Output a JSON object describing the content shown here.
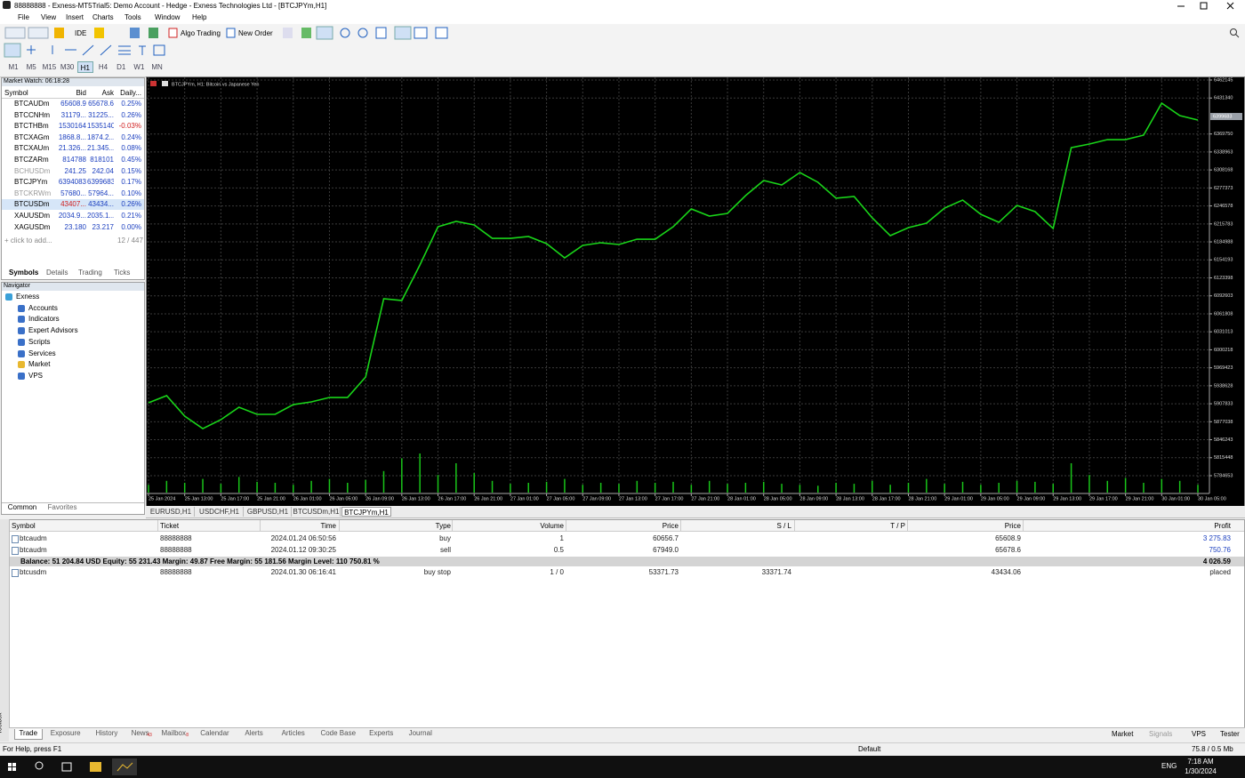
{
  "window_title": "88888888 - Exness-MT5Trial5: Demo Account - Hedge - Exness Technologies Ltd - [BTCJPYm,H1]",
  "menu": [
    "File",
    "View",
    "Insert",
    "Charts",
    "Tools",
    "Window",
    "Help"
  ],
  "toolbar": {
    "ide": "IDE",
    "algo_trading": "Algo Trading",
    "new_order": "New Order"
  },
  "timeframes": {
    "items": [
      "M1",
      "M5",
      "M15",
      "M30",
      "H1",
      "H4",
      "D1",
      "W1",
      "MN"
    ],
    "active": "H1"
  },
  "market_watch": {
    "title": "Market Watch: 06:18:28",
    "columns": [
      "Symbol",
      "Bid",
      "Ask",
      "Daily..."
    ],
    "rows": [
      [
        "BTCAUDm",
        "65608.9",
        "65678.6",
        "0.25%"
      ],
      [
        "BTCCNHm",
        "31179...",
        "31225...",
        "0.26%"
      ],
      [
        "BTCTHBm",
        "1530164",
        "1535140",
        "-0.03%"
      ],
      [
        "BTCXAGm",
        "1868.8...",
        "1874.2...",
        "0.24%"
      ],
      [
        "BTCXAUm",
        "21.326...",
        "21.345...",
        "0.08%"
      ],
      [
        "BTCZARm",
        "814788",
        "818101",
        "0.45%"
      ],
      [
        "BCHUSDm",
        "241.25",
        "242.04",
        "0.15%"
      ],
      [
        "BTCJPYm",
        "6394083",
        "6399683",
        "0.17%"
      ],
      [
        "BTCKRWm",
        "57680...",
        "57964...",
        "0.10%"
      ],
      [
        "BTCUSDm",
        "43407...",
        "43434...",
        "0.26%"
      ],
      [
        "XAUUSDm",
        "2034.9...",
        "2035.1...",
        "0.21%"
      ],
      [
        "XAGUSDm",
        "23.180",
        "23.217",
        "0.00%"
      ]
    ],
    "add_row": "+ click to add...",
    "count": "12 / 447",
    "tabs": [
      "Symbols",
      "Details",
      "Trading",
      "Ticks"
    ]
  },
  "navigator": {
    "title": "Navigator",
    "items": [
      "Exness",
      "Accounts",
      "Indicators",
      "Expert Advisors",
      "Scripts",
      "Services",
      "Market",
      "VPS"
    ],
    "tabs": [
      "Common",
      "Favorites"
    ]
  },
  "chart_data": {
    "type": "line",
    "title": "BTCJPYm, H1: Bitcoin vs Japanese Yen",
    "categories": [
      "25 Jan 2024",
      null,
      "25 Jan 13:00",
      null,
      "25 Jan 17:00",
      null,
      "25 Jan 21:00",
      null,
      "26 Jan 01:00",
      null,
      "26 Jan 05:00",
      null,
      "26 Jan 09:00",
      null,
      "26 Jan 13:00",
      null,
      "26 Jan 17:00",
      null,
      "26 Jan 21:00",
      null,
      "27 Jan 01:00",
      null,
      "27 Jan 05:00",
      null,
      "27 Jan 09:00",
      null,
      "27 Jan 13:00",
      null,
      "27 Jan 17:00",
      null,
      "27 Jan 21:00",
      null,
      "28 Jan 01:00",
      null,
      "28 Jan 05:00",
      null,
      "28 Jan 09:00",
      null,
      "28 Jan 13:00",
      null,
      "28 Jan 17:00",
      null,
      "28 Jan 21:00",
      null,
      "29 Jan 01:00",
      null,
      "29 Jan 05:00",
      null,
      "29 Jan 09:00",
      null,
      "29 Jan 13:00",
      null,
      "29 Jan 17:00",
      null,
      "29 Jan 21:00",
      null,
      "30 Jan 01:00",
      null,
      "30 Jan 05:00"
    ],
    "values": [
      5909500,
      5921700,
      5886600,
      5865300,
      5880600,
      5901900,
      5889700,
      5889700,
      5906400,
      5911000,
      5918600,
      5918600,
      5953600,
      6087600,
      6084600,
      6145500,
      6210900,
      6220100,
      6214000,
      6191100,
      6191100,
      6194200,
      6182000,
      6157600,
      6179000,
      6183500,
      6180500,
      6189600,
      6189600,
      6210900,
      6241400,
      6229200,
      6233800,
      6264200,
      6290100,
      6282500,
      6303800,
      6287100,
      6259700,
      6262700,
      6226200,
      6195700,
      6209400,
      6217000,
      6242900,
      6256600,
      6232200,
      6218500,
      6247500,
      6236800,
      6207900,
      6346400,
      6352500,
      6360100,
      6360100,
      6367800,
      6422600,
      6401200,
      6393600
    ],
    "volumes": [
      8,
      12,
      10,
      14,
      9,
      16,
      11,
      10,
      8,
      12,
      14,
      10,
      13,
      22,
      35,
      40,
      18,
      30,
      20,
      12,
      9,
      10,
      11,
      14,
      8,
      10,
      9,
      12,
      10,
      11,
      8,
      12,
      9,
      10,
      11,
      9,
      8,
      7,
      10,
      9,
      12,
      8,
      10,
      14,
      9,
      11,
      8,
      10,
      12,
      11,
      9,
      30,
      18,
      12,
      15,
      10,
      14,
      12,
      8
    ],
    "color": "#19d419",
    "volume_color": "#19c419",
    "ylim": [
      5754204,
      6465190
    ],
    "yticks": [
      6462145,
      6431340,
      6369750,
      6338963,
      6308168,
      6277373,
      6246578,
      6215783,
      6184988,
      6154193,
      6123398,
      6092603,
      6061808,
      6031013,
      6000218,
      5969423,
      5938628,
      5907833,
      5877038,
      5846243,
      5815448,
      5784653
    ],
    "ask_line": 6399683,
    "grid": true
  },
  "chart_tabs": {
    "items": [
      "EURUSD,H1",
      "USDCHF,H1",
      "GBPUSD,H1",
      "BTCUSDm,H1",
      "BTCJPYm,H1"
    ],
    "active": "BTCJPYm,H1"
  },
  "trade": {
    "columns": [
      "Symbol",
      "Ticket",
      "Time",
      "Type",
      "Volume",
      "Price",
      "S / L",
      "T / P",
      "Price",
      "Profit"
    ],
    "rows": [
      [
        "btcaudm",
        "88888888",
        "2024.01.24 06:50:56",
        "buy",
        "1",
        "60656.7",
        null,
        null,
        "65608.9",
        "3 275.83"
      ],
      [
        "btcaudm",
        "88888888",
        "2024.01.12 09:30:25",
        "sell",
        "0.5",
        "67949.0",
        null,
        null,
        "65678.6",
        "750.76"
      ]
    ],
    "balance": "Balance: 51 204.84 USD  Equity: 55 231.43  Margin: 49.87  Free Margin: 55 181.56  Margin Level: 110 750.81 %",
    "balance_profit": "4 026.59",
    "orders": [
      [
        "btcusdm",
        "88888888",
        "2024.01.30 06:16:41",
        "buy stop",
        "1 / 0",
        "53371.73",
        "33371.74",
        null,
        "43434.06",
        "placed"
      ]
    ]
  },
  "toolbox": {
    "label": "Toolbox",
    "tabs": [
      "Trade",
      "Exposure",
      "History",
      "News",
      "Mailbox",
      "Calendar",
      "Alerts",
      "Articles",
      "Code Base",
      "Experts",
      "Journal"
    ],
    "badges": {
      "News": "43",
      "Mailbox": "8"
    },
    "right_tabs": [
      "Market",
      "Signals",
      "VPS",
      "Tester"
    ]
  },
  "status_bar": {
    "help": "For Help, press F1",
    "profile": "Default",
    "traffic": "75.8 / 0.5 Mb"
  },
  "taskbar": {
    "lang": "ENG",
    "time": "7:18 AM",
    "date": "1/30/2024"
  }
}
